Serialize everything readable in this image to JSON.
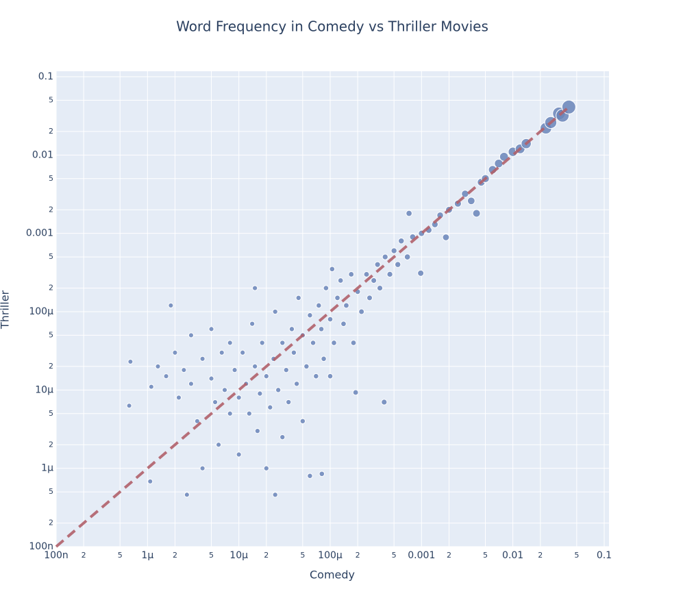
{
  "chart_data": {
    "type": "scatter",
    "title": "Word Frequency in Comedy vs Thriller Movies",
    "x_label": "Comedy",
    "y_label": "Thriller",
    "log_x": true,
    "log_y": true,
    "grid": true,
    "color": "#6a85b8",
    "xlim": [
      1e-07,
      0.1129
    ],
    "ylim": [
      1e-07,
      0.1175
    ],
    "xticks": [
      {
        "value": 1e-07,
        "label": "100n"
      },
      {
        "value": 2e-07,
        "label": "2"
      },
      {
        "value": 5e-07,
        "label": "5"
      },
      {
        "value": 1e-06,
        "label": "1μ"
      },
      {
        "value": 2e-06,
        "label": "2"
      },
      {
        "value": 5e-06,
        "label": "5"
      },
      {
        "value": 1e-05,
        "label": "10μ"
      },
      {
        "value": 2e-05,
        "label": "2"
      },
      {
        "value": 5e-05,
        "label": "5"
      },
      {
        "value": 0.0001,
        "label": "100μ"
      },
      {
        "value": 0.0002,
        "label": "2"
      },
      {
        "value": 0.0005,
        "label": "5"
      },
      0.001,
      {
        "value": 0.002,
        "label": "2"
      },
      {
        "value": 0.005,
        "label": "5"
      },
      0.01,
      {
        "value": 0.02,
        "label": "2"
      },
      {
        "value": 0.05,
        "label": "5"
      },
      0.1
    ],
    "yticks": [
      {
        "value": 1e-07,
        "label": "100n"
      },
      {
        "value": 2e-07,
        "label": "2"
      },
      {
        "value": 5e-07,
        "label": "5"
      },
      {
        "value": 1e-06,
        "label": "1μ"
      },
      {
        "value": 2e-06,
        "label": "2"
      },
      {
        "value": 5e-06,
        "label": "5"
      },
      {
        "value": 1e-05,
        "label": "10μ"
      },
      {
        "value": 2e-05,
        "label": "2"
      },
      {
        "value": 5e-05,
        "label": "5"
      },
      {
        "value": 0.0001,
        "label": "100μ"
      },
      {
        "value": 0.0002,
        "label": "2"
      },
      {
        "value": 0.0005,
        "label": "5"
      },
      0.001,
      {
        "value": 0.002,
        "label": "2"
      },
      {
        "value": 0.005,
        "label": "5"
      },
      0.01,
      {
        "value": 0.02,
        "label": "2"
      },
      {
        "value": 0.05,
        "label": "5"
      },
      0.1
    ],
    "x": [
      6.5e-07,
      6.3e-07,
      1.07e-06,
      2.7e-06,
      2.5e-05,
      1.8e-06,
      1.5e-05,
      0.00039,
      0.00019,
      8.1e-05,
      0.000105,
      1.1e-06,
      1.3e-06,
      1.6e-06,
      2e-06,
      2.2e-06,
      2.5e-06,
      3e-06,
      3e-06,
      3.5e-06,
      4e-06,
      4e-06,
      5e-06,
      5e-06,
      5.5e-06,
      6e-06,
      6.5e-06,
      7e-06,
      8e-06,
      8e-06,
      9e-06,
      1e-05,
      1e-05,
      1.1e-05,
      1.2e-05,
      1.3e-05,
      1.4e-05,
      1.5e-05,
      1.6e-05,
      1.7e-05,
      1.8e-05,
      2e-05,
      2e-05,
      2.2e-05,
      2.4e-05,
      2.5e-05,
      2.7e-05,
      3e-05,
      3e-05,
      3.3e-05,
      3.5e-05,
      3.8e-05,
      4e-05,
      4.3e-05,
      4.5e-05,
      5e-05,
      5e-05,
      5.5e-05,
      6e-05,
      6e-05,
      6.5e-05,
      7e-05,
      7.5e-05,
      8e-05,
      8.5e-05,
      9e-05,
      0.0001,
      0.0001,
      0.00011,
      0.00012,
      0.00013,
      0.00014,
      0.00015,
      0.00017,
      0.00018,
      0.0002,
      0.00022,
      0.00025,
      0.00027,
      0.0003,
      0.00033,
      0.00035,
      0.0004,
      0.00045,
      0.0005,
      0.00055,
      0.0006,
      0.0007,
      0.00073,
      0.0008,
      0.00098,
      0.001,
      0.0012,
      0.0014,
      0.0016,
      0.00185,
      0.002,
      0.0025,
      0.003,
      0.0035,
      0.004,
      0.0045,
      0.005,
      0.006,
      0.007,
      0.008,
      0.01,
      0.012,
      0.014,
      0.023,
      0.026,
      0.032,
      0.035,
      0.041
    ],
    "y": [
      2.3e-05,
      6.3e-06,
      6.8e-07,
      4.6e-07,
      4.6e-07,
      0.00012,
      0.0002,
      7e-06,
      9.3e-06,
      8.5e-07,
      0.00035,
      1.1e-05,
      2e-05,
      1.5e-05,
      3e-05,
      8e-06,
      1.8e-05,
      5e-05,
      1.2e-05,
      4e-06,
      2.5e-05,
      1e-06,
      1.4e-05,
      6e-05,
      7e-06,
      2e-06,
      3e-05,
      1e-05,
      4e-05,
      5e-06,
      1.8e-05,
      8e-06,
      1.5e-06,
      3e-05,
      1.2e-05,
      5e-06,
      7e-05,
      2e-05,
      3e-06,
      9e-06,
      4e-05,
      1.5e-05,
      1e-06,
      6e-06,
      2.5e-05,
      0.0001,
      1e-05,
      4e-05,
      2.5e-06,
      1.8e-05,
      7e-06,
      6e-05,
      3e-05,
      1.2e-05,
      0.00015,
      5e-05,
      4e-06,
      2e-05,
      9e-05,
      8e-07,
      4e-05,
      1.5e-05,
      0.00012,
      6e-05,
      2.5e-05,
      0.0002,
      8e-05,
      1.5e-05,
      4e-05,
      0.00015,
      0.00025,
      7e-05,
      0.00012,
      0.0003,
      4e-05,
      0.00018,
      0.0001,
      0.0003,
      0.00015,
      0.00025,
      0.0004,
      0.0002,
      0.0005,
      0.0003,
      0.0006,
      0.0004,
      0.0008,
      0.0005,
      0.0018,
      0.0009,
      0.00031,
      0.001,
      0.0011,
      0.0013,
      0.0017,
      0.00089,
      0.002,
      0.0024,
      0.0032,
      0.0026,
      0.0018,
      0.0045,
      0.005,
      0.0065,
      0.0078,
      0.0095,
      0.011,
      0.012,
      0.014,
      0.022,
      0.026,
      0.034,
      0.032,
      0.041
    ],
    "reference_line": {
      "x": [
        1e-07,
        0.041
      ],
      "y": [
        1e-07,
        0.041
      ],
      "color": "#b0606a"
    }
  }
}
